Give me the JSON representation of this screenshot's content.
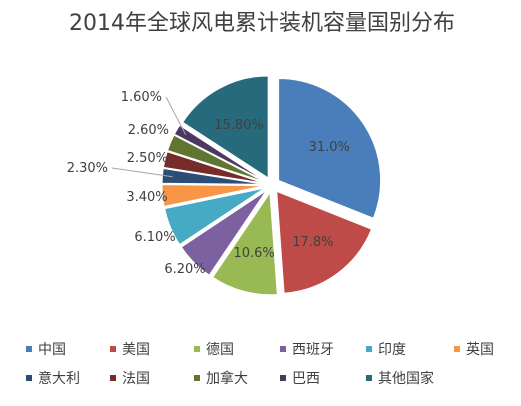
{
  "chart_data": {
    "type": "pie",
    "title": "2014年全球风电累计装机容量国别分布",
    "exploded": true,
    "start_angle_deg": 0,
    "direction": "clockwise",
    "slices": [
      {
        "name": "中国",
        "value": 31.0,
        "label": "31.0%",
        "color": "#4a7ebb"
      },
      {
        "name": "美国",
        "value": 17.8,
        "label": "17.8%",
        "color": "#be4b48"
      },
      {
        "name": "德国",
        "value": 10.6,
        "label": "10.6%",
        "color": "#98b954"
      },
      {
        "name": "西班牙",
        "value": 6.2,
        "label": "6.20%",
        "color": "#7d60a0"
      },
      {
        "name": "印度",
        "value": 6.1,
        "label": "6.10%",
        "color": "#46aac5"
      },
      {
        "name": "英国",
        "value": 3.4,
        "label": "3.40%",
        "color": "#f79646"
      },
      {
        "name": "意大利",
        "value": 2.3,
        "label": "2.30%",
        "color": "#2c4d75"
      },
      {
        "name": "法国",
        "value": 2.5,
        "label": "2.50%",
        "color": "#772c2a"
      },
      {
        "name": "加拿大",
        "value": 2.6,
        "label": "2.60%",
        "color": "#5f7530"
      },
      {
        "name": "巴西",
        "value": 1.6,
        "label": "1.60%",
        "color": "#4b3861"
      },
      {
        "name": "其他国家",
        "value": 15.8,
        "label": "15.80%",
        "color": "#276a7c"
      }
    ],
    "legend": {
      "position": "bottom",
      "rows": 2
    }
  }
}
